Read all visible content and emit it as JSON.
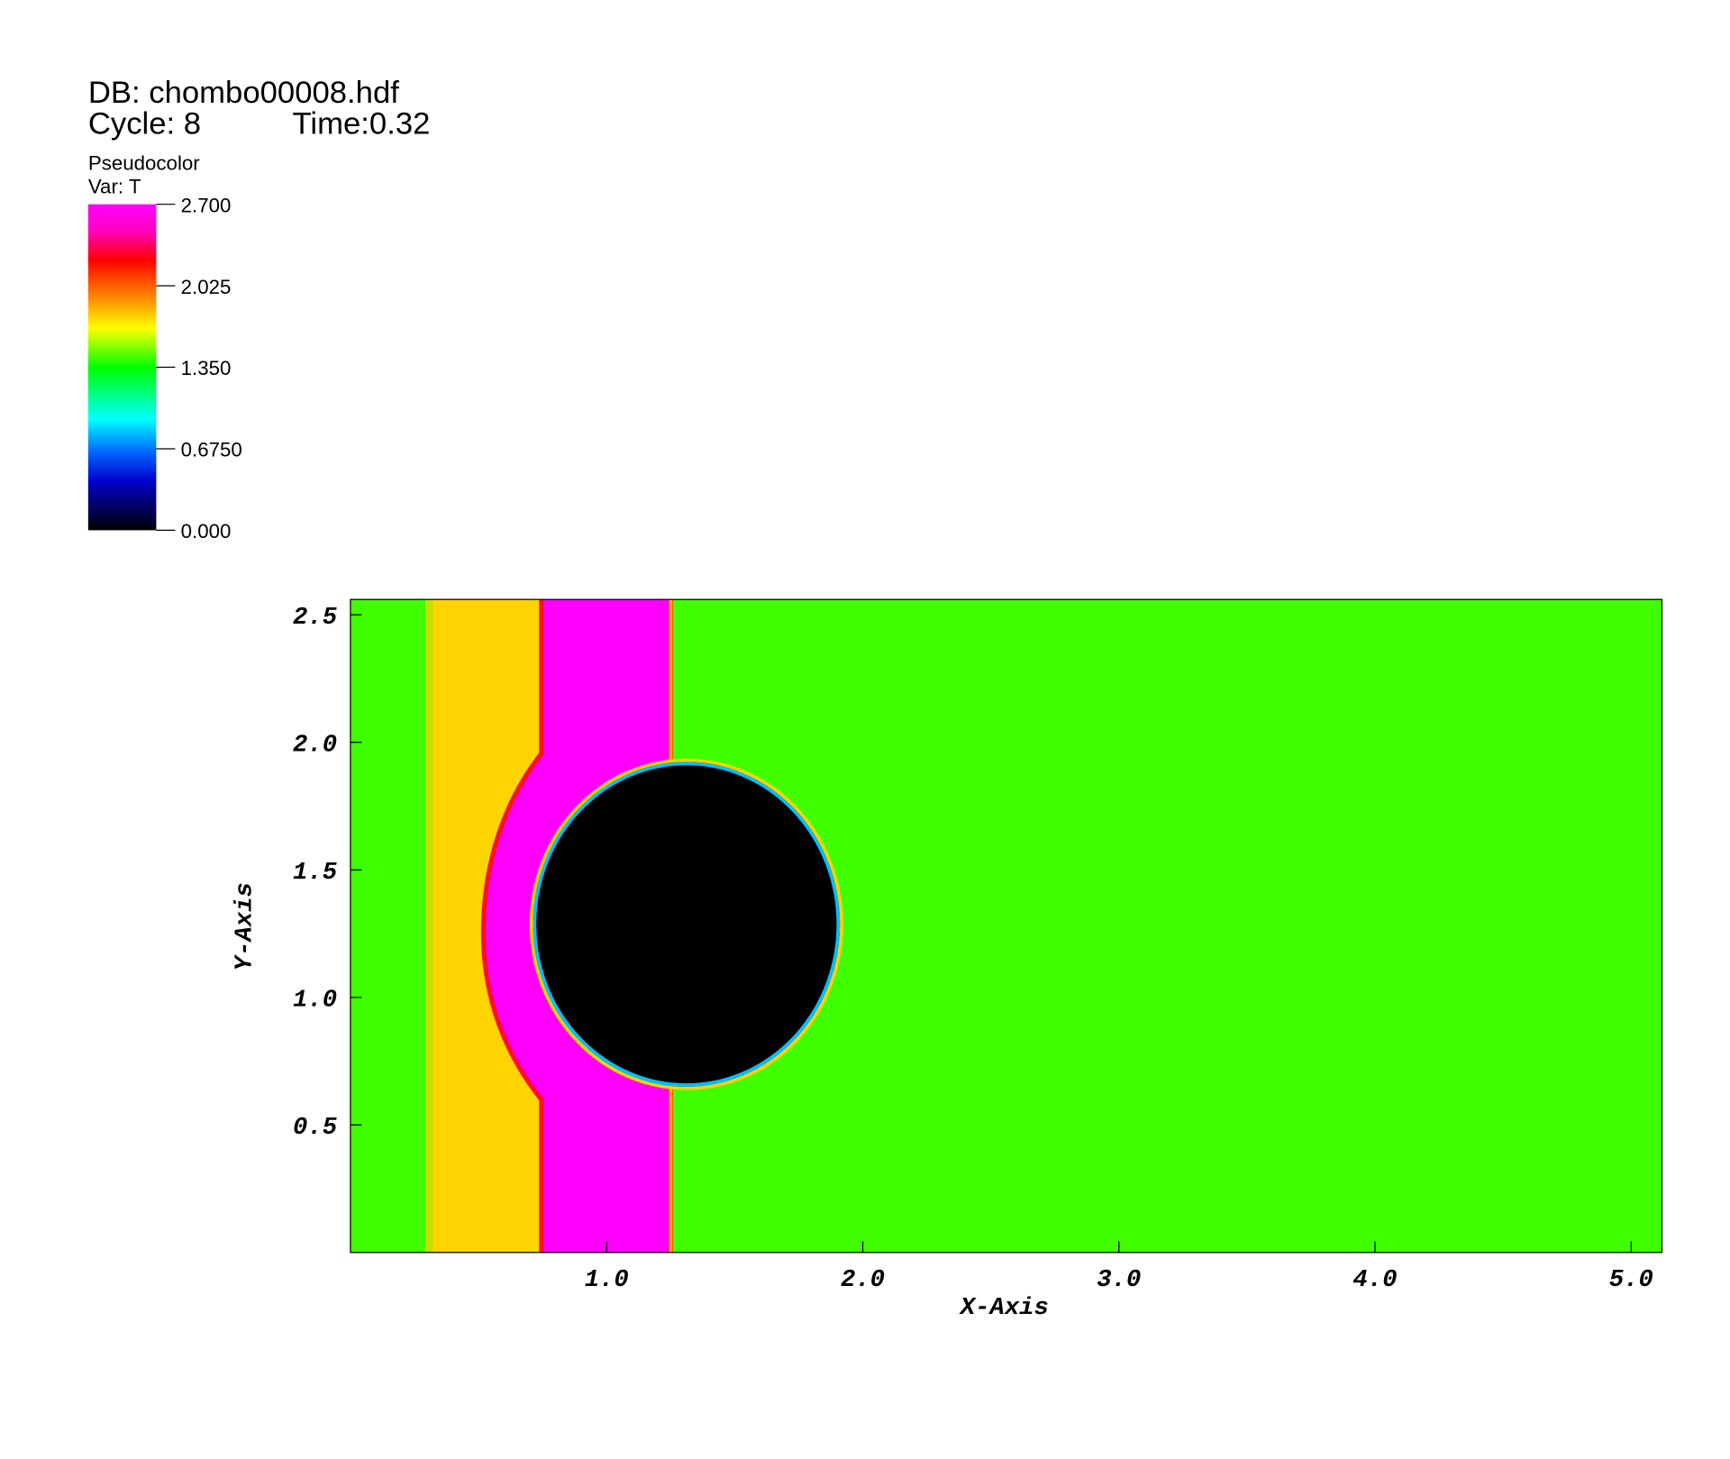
{
  "chart_data": {
    "type": "pseudocolor",
    "title": "DB: chombo00008.hdf",
    "cycle": "Cycle: 8",
    "time": "Time:0.32",
    "legend_title": "Pseudocolor",
    "legend_var": "Var: T",
    "x_label": "X-Axis",
    "y_label": "Y-Axis",
    "xlim": [
      0,
      5.12
    ],
    "ylim": [
      0,
      2.56
    ],
    "xticks": [
      {
        "value": 1,
        "label": "1.0"
      },
      {
        "value": 2,
        "label": "2.0"
      },
      {
        "value": 3,
        "label": "3.0"
      },
      {
        "value": 4,
        "label": "4.0"
      },
      {
        "value": 5,
        "label": "5.0"
      }
    ],
    "yticks": [
      0.5,
      {
        "value": 1,
        "label": "1.0"
      },
      1.5,
      {
        "value": 2,
        "label": "2.0"
      },
      2.5
    ],
    "clim": [
      0,
      2.7
    ],
    "cticks": [
      {
        "value": 2.7,
        "label": "2.700"
      },
      {
        "value": 2.025,
        "label": "2.025"
      },
      {
        "value": 1.35,
        "label": "1.350"
      },
      {
        "value": 0.675,
        "label": "0.6750"
      },
      {
        "value": 0,
        "label": "0.000"
      }
    ]
  }
}
